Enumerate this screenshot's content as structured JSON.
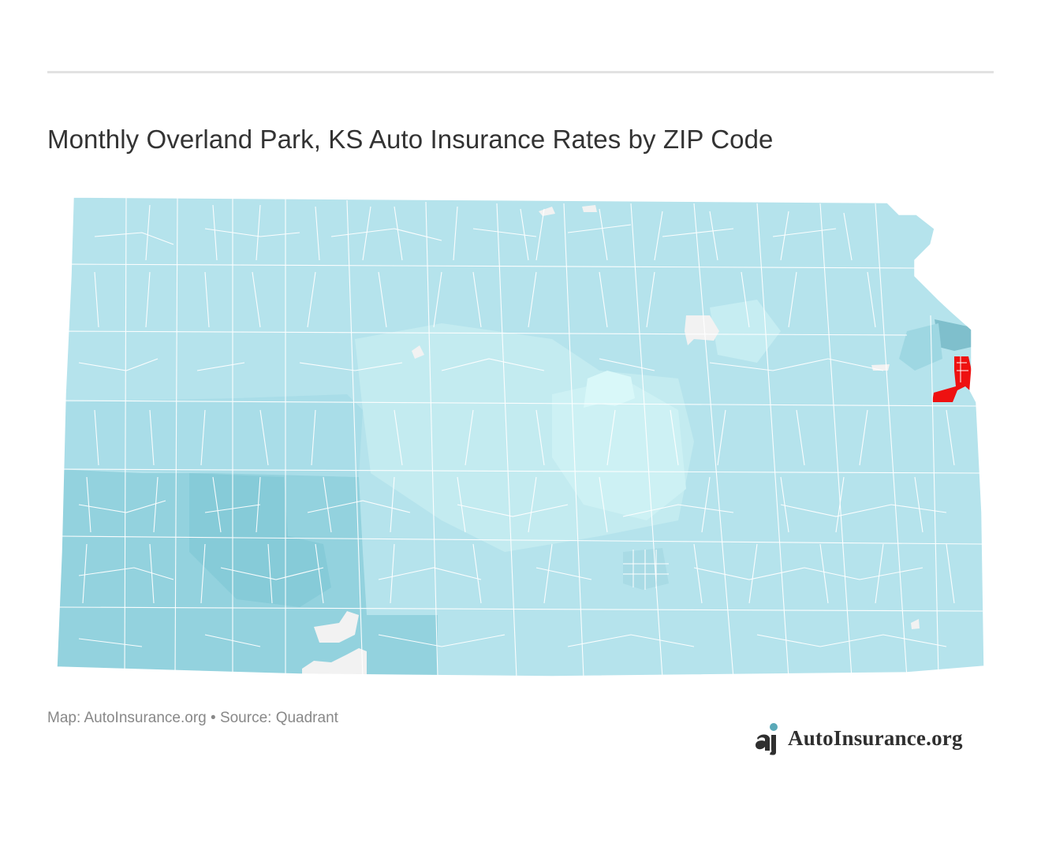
{
  "header": {
    "title": "Monthly Overland Park, KS Auto Insurance Rates by ZIP Code"
  },
  "map": {
    "region": "Kansas",
    "unit": "ZIP Code",
    "colors": {
      "base": "#b5e3ec",
      "lowest": "#d8f7f9",
      "low": "#c4ecf1",
      "high": "#8fd0dd",
      "higher": "#7bbfcd",
      "highest": "#ee1111",
      "no_data": "#f2f2f2",
      "borders": "#ffffff"
    }
  },
  "footer": {
    "source_text": "Map: AutoInsurance.org • Source: Quadrant"
  },
  "brand": {
    "name": "AutoInsurance.org",
    "logo_icon": "ai-logo-icon"
  }
}
